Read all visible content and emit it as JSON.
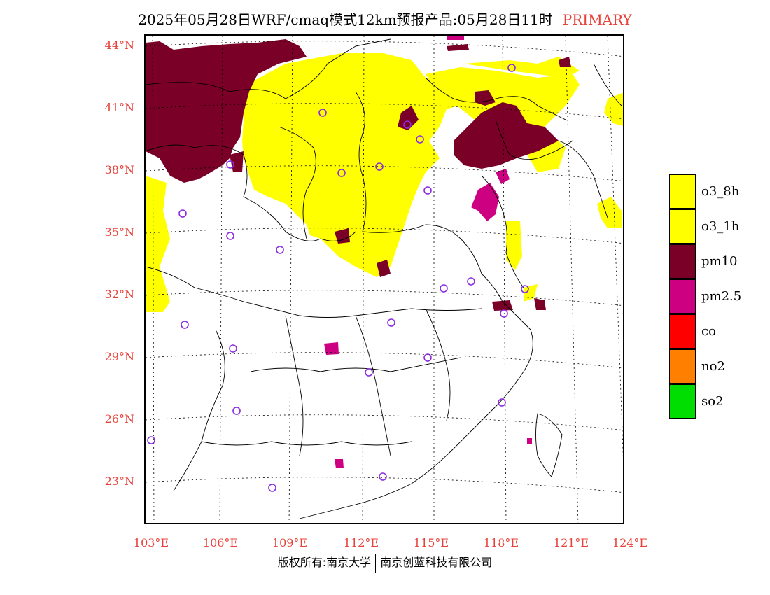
{
  "header": {
    "title": "2025年05月28日WRF/cmaq模式12km预报产品:05月28日11时",
    "tag": "PRIMARY"
  },
  "map": {
    "lat_labels": [
      "44°N",
      "41°N",
      "38°N",
      "35°N",
      "32°N",
      "29°N",
      "26°N",
      "23°N"
    ],
    "lon_labels": [
      "103°E",
      "106°E",
      "109°E",
      "112°E",
      "115°E",
      "118°E",
      "121°E",
      "124°E"
    ],
    "colors": {
      "o3": "#ffff00",
      "pm10": "#7a0028",
      "pm25": "#cc0080",
      "station_marker": "#8a2be2",
      "label_red": "#e8413a"
    }
  },
  "legend": [
    {
      "label": "o3_8h",
      "color": "#ffff00"
    },
    {
      "label": "o3_1h",
      "color": "#ffff00"
    },
    {
      "label": "pm10",
      "color": "#7a0028"
    },
    {
      "label": "pm2.5",
      "color": "#cc0080"
    },
    {
      "label": "co",
      "color": "#ff0000"
    },
    {
      "label": "no2",
      "color": "#ff8000"
    },
    {
      "label": "so2",
      "color": "#00dd00"
    }
  ],
  "footer": {
    "left": "版权所有:南京大学",
    "right": "南京创蓝科技有限公司"
  }
}
